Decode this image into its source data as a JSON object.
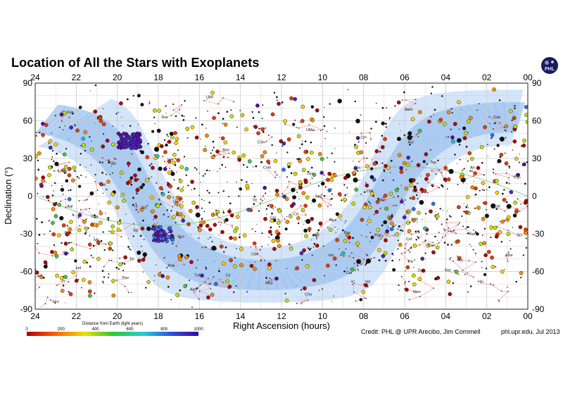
{
  "title": "Location of All the Stars with Exoplanets",
  "logo_text": "PHL",
  "credit_left": "Credit: PHL @ UPR Arecibo, Jim Cornmell",
  "credit_right": "phl.upr.edu, Jul 2013",
  "colors": {
    "milky_way": "#9fc3ef",
    "milky_way_light": "#cfe2fa",
    "grid": "#c8c8c8",
    "constellation_line": "#f08c8c",
    "ecliptic": "#7ac47a"
  },
  "chart_data": {
    "type": "scatter",
    "title": "Location of All the Stars with Exoplanets",
    "xlabel": "Right Ascension (hours)",
    "ylabel": "Declination (°)",
    "xlim": [
      24,
      0
    ],
    "ylim": [
      -90,
      90
    ],
    "x_ticks": [
      "24",
      "22",
      "20",
      "18",
      "16",
      "14",
      "12",
      "10",
      "08",
      "06",
      "04",
      "02",
      "00"
    ],
    "x_tick_values": [
      24,
      22,
      20,
      18,
      16,
      14,
      12,
      10,
      8,
      6,
      4,
      2,
      0
    ],
    "y_ticks": [
      "90",
      "60",
      "30",
      "0",
      "-30",
      "-60",
      "-90"
    ],
    "y_tick_values": [
      90,
      60,
      30,
      0,
      -30,
      -60,
      -90
    ],
    "grid": true,
    "colorbar": {
      "title": "Distance from Earth (light years)",
      "ticks": [
        "0",
        "200",
        "400",
        "600",
        "800",
        "1000"
      ],
      "range": [
        0,
        1000
      ]
    },
    "constellations": [
      {
        "name": "UMi",
        "ra": 15.5,
        "dec": 78
      },
      {
        "name": "Dra",
        "ra": 17.7,
        "dec": 62
      },
      {
        "name": "Cep",
        "ra": 22.3,
        "dec": 66
      },
      {
        "name": "Cam",
        "ra": 5.8,
        "dec": 68
      },
      {
        "name": "Cas",
        "ra": 1.5,
        "dec": 62
      },
      {
        "name": "CVn",
        "ra": 13.0,
        "dec": 42
      },
      {
        "name": "UMa",
        "ra": 10.6,
        "dec": 52
      },
      {
        "name": "Lyn",
        "ra": 8.0,
        "dec": 46
      },
      {
        "name": "Aur",
        "ra": 5.7,
        "dec": 42
      },
      {
        "name": "Boo",
        "ra": 14.7,
        "dec": 36
      },
      {
        "name": "Com",
        "ra": 12.7,
        "dec": 22
      },
      {
        "name": "Leo",
        "ra": 10.6,
        "dec": 17
      },
      {
        "name": "Cnc",
        "ra": 8.3,
        "dec": 22
      },
      {
        "name": "Tau",
        "ra": 4.6,
        "dec": 26
      },
      {
        "name": "Ari",
        "ra": 2.7,
        "dec": 22
      },
      {
        "name": "Psc",
        "ra": 0.5,
        "dec": 14
      },
      {
        "name": "Peg",
        "ra": 22.6,
        "dec": 19
      },
      {
        "name": "Vul",
        "ra": 20.2,
        "dec": 25
      },
      {
        "name": "Her",
        "ra": 17.4,
        "dec": 28
      },
      {
        "name": "Del",
        "ra": 20.7,
        "dec": 8
      },
      {
        "name": "Oph",
        "ra": 17.1,
        "dec": -5
      },
      {
        "name": "Vir",
        "ra": 13.3,
        "dec": -4
      },
      {
        "name": "Sex",
        "ra": 10.2,
        "dec": -1
      },
      {
        "name": "Hya",
        "ra": 9.5,
        "dec": -20
      },
      {
        "name": "CMi",
        "ra": 7.7,
        "dec": 3
      },
      {
        "name": "Mon",
        "ra": 7.1,
        "dec": -4
      },
      {
        "name": "Ori",
        "ra": 5.5,
        "dec": 3
      },
      {
        "name": "Cet",
        "ra": 1.5,
        "dec": -9
      },
      {
        "name": "Aqr",
        "ra": 22.3,
        "dec": -9
      },
      {
        "name": "Cap",
        "ra": 21.1,
        "dec": -17
      },
      {
        "name": "Sct",
        "ra": 18.7,
        "dec": -10
      },
      {
        "name": "Lib",
        "ra": 15.2,
        "dec": -15
      },
      {
        "name": "Crv",
        "ra": 12.4,
        "dec": -18
      },
      {
        "name": "Crt",
        "ra": 11.3,
        "dec": -15
      },
      {
        "name": "Pyx",
        "ra": 8.8,
        "dec": -30
      },
      {
        "name": "Pup",
        "ra": 7.3,
        "dec": -32
      },
      {
        "name": "Lep",
        "ra": 5.5,
        "dec": -19
      },
      {
        "name": "Eri",
        "ra": 3.7,
        "dec": -29
      },
      {
        "name": "For",
        "ra": 2.7,
        "dec": -31
      },
      {
        "name": "Scl",
        "ra": 0.4,
        "dec": -32
      },
      {
        "name": "PsA",
        "ra": 22.4,
        "dec": -30
      },
      {
        "name": "Mic",
        "ra": 21.0,
        "dec": -36
      },
      {
        "name": "Sgr",
        "ra": 19.1,
        "dec": -28
      },
      {
        "name": "Sco",
        "ra": 16.9,
        "dec": -33
      },
      {
        "name": "Lup",
        "ra": 15.3,
        "dec": -43
      },
      {
        "name": "Cen",
        "ra": 13.3,
        "dec": -47
      },
      {
        "name": "Ant",
        "ra": 10.3,
        "dec": -32
      },
      {
        "name": "Vel",
        "ra": 9.6,
        "dec": -48
      },
      {
        "name": "Car",
        "ra": 8.7,
        "dec": -62
      },
      {
        "name": "Pic",
        "ra": 5.7,
        "dec": -53
      },
      {
        "name": "Col",
        "ra": 5.8,
        "dec": -35
      },
      {
        "name": "Cae",
        "ra": 4.7,
        "dec": -40
      },
      {
        "name": "Hor",
        "ra": 3.3,
        "dec": -52
      },
      {
        "name": "Phe",
        "ra": 0.9,
        "dec": -48
      },
      {
        "name": "Gru",
        "ra": 22.5,
        "dec": -46
      },
      {
        "name": "Ind",
        "ra": 21.9,
        "dec": -58
      },
      {
        "name": "Tel",
        "ra": 19.3,
        "dec": -51
      },
      {
        "name": "Pav",
        "ra": 19.6,
        "dec": -66
      },
      {
        "name": "Ara",
        "ra": 17.4,
        "dec": -56
      },
      {
        "name": "TrA",
        "ra": 16.1,
        "dec": -64
      },
      {
        "name": "Cir",
        "ra": 14.6,
        "dec": -64
      },
      {
        "name": "Mus",
        "ra": 12.6,
        "dec": -70
      },
      {
        "name": "Cha",
        "ra": 10.7,
        "dec": -79
      },
      {
        "name": "Vol",
        "ra": 7.8,
        "dec": -69
      },
      {
        "name": "Dor",
        "ra": 5.2,
        "dec": -60
      },
      {
        "name": "Ret",
        "ra": 3.9,
        "dec": -60
      },
      {
        "name": "Hyi",
        "ra": 2.3,
        "dec": -69
      },
      {
        "name": "Tuc",
        "ra": 23.8,
        "dec": -64
      },
      {
        "name": "Men",
        "ra": 5.4,
        "dec": -77
      },
      {
        "name": "Aps",
        "ra": 16.3,
        "dec": -75
      },
      {
        "name": "Oct",
        "ra": 23.0,
        "dec": -85
      }
    ]
  }
}
